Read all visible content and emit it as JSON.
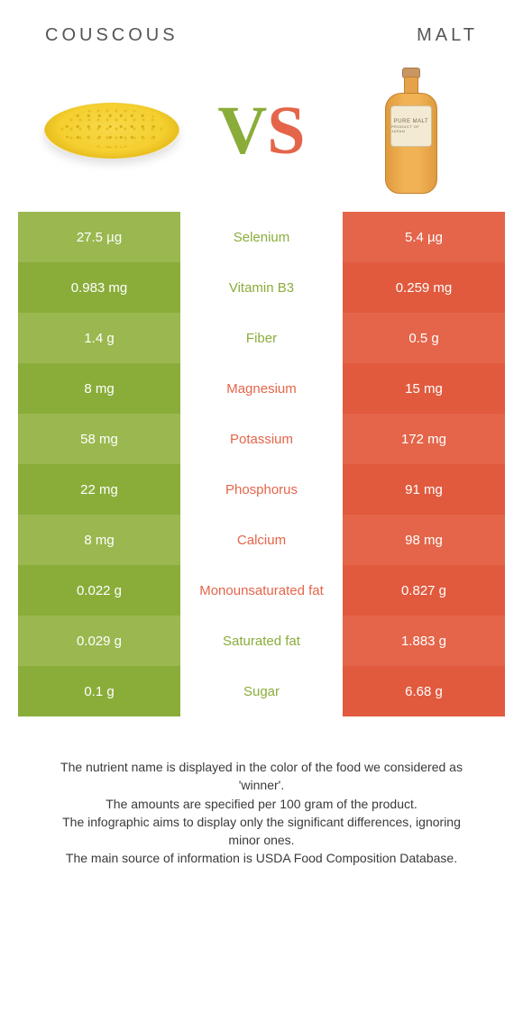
{
  "colors": {
    "left_a": "#9ab84f",
    "left_b": "#8aad3a",
    "right_a": "#e4654a",
    "right_b": "#e15a3e",
    "mid_left_text": "#8aad3a",
    "mid_right_text": "#e4654a"
  },
  "titles": {
    "left": "COUSCOUS",
    "right": "MALT"
  },
  "vs": {
    "v": "V",
    "s": "S"
  },
  "bottle_label": {
    "line1": "PURE MALT",
    "line2": "PRODUCT OF JAPAN"
  },
  "rows": [
    {
      "left": "27.5 µg",
      "name": "Selenium",
      "right": "5.4 µg",
      "winner": "left"
    },
    {
      "left": "0.983 mg",
      "name": "Vitamin B3",
      "right": "0.259 mg",
      "winner": "left"
    },
    {
      "left": "1.4 g",
      "name": "Fiber",
      "right": "0.5 g",
      "winner": "left"
    },
    {
      "left": "8 mg",
      "name": "Magnesium",
      "right": "15 mg",
      "winner": "right"
    },
    {
      "left": "58 mg",
      "name": "Potassium",
      "right": "172 mg",
      "winner": "right"
    },
    {
      "left": "22 mg",
      "name": "Phosphorus",
      "right": "91 mg",
      "winner": "right"
    },
    {
      "left": "8 mg",
      "name": "Calcium",
      "right": "98 mg",
      "winner": "right"
    },
    {
      "left": "0.022 g",
      "name": "Monounsaturated fat",
      "right": "0.827 g",
      "winner": "right"
    },
    {
      "left": "0.029 g",
      "name": "Saturated fat",
      "right": "1.883 g",
      "winner": "left"
    },
    {
      "left": "0.1 g",
      "name": "Sugar",
      "right": "6.68 g",
      "winner": "left"
    }
  ],
  "footnotes": [
    "The nutrient name is displayed in the color of the food we considered as 'winner'.",
    "The amounts are specified per 100 gram of the product.",
    "The infographic aims to display only the significant differences, ignoring minor ones.",
    "The main source of information is USDA Food Composition Database."
  ]
}
